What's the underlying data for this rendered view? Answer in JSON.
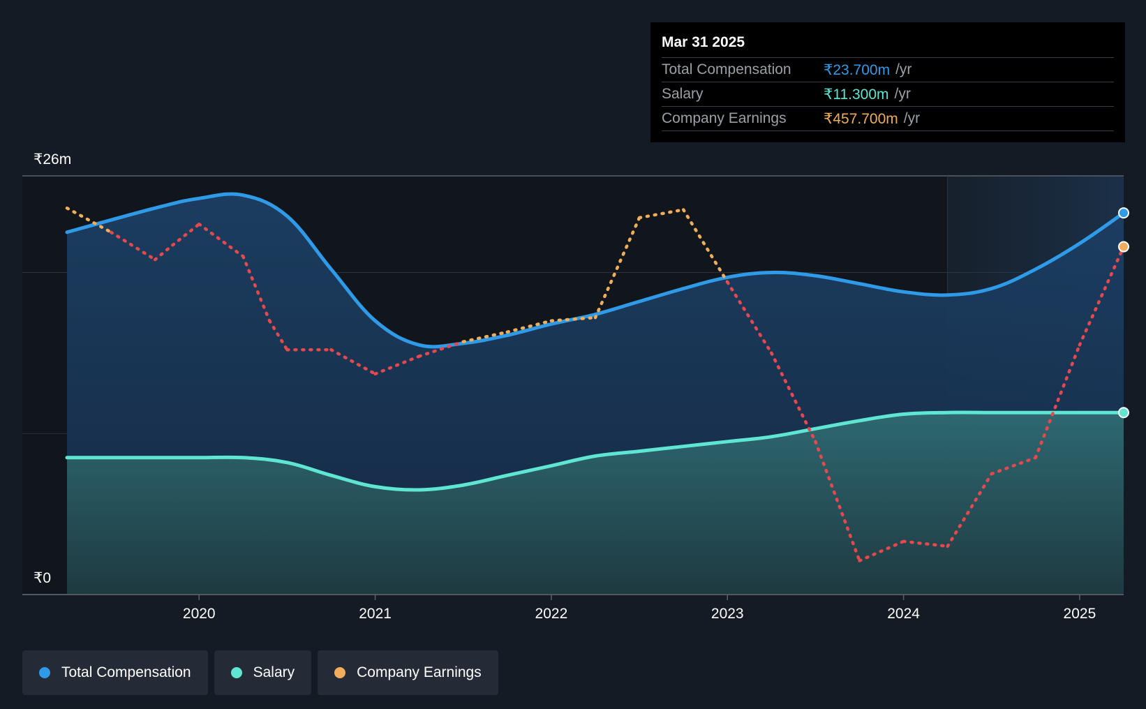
{
  "tooltip": {
    "date": "Mar 31 2025",
    "rows": [
      {
        "label": "Total Compensation",
        "value": "₹23.700m",
        "unit": "/yr",
        "color": "#2f9be8"
      },
      {
        "label": "Salary",
        "value": "₹11.300m",
        "unit": "/yr",
        "color": "#5fe6d2"
      },
      {
        "label": "Company Earnings",
        "value": "₹457.700m",
        "unit": "/yr",
        "color": "#f0ad5c"
      }
    ]
  },
  "legend": [
    {
      "label": "Total Compensation",
      "color": "#2f9be8"
    },
    {
      "label": "Salary",
      "color": "#5fe6d2"
    },
    {
      "label": "Company Earnings",
      "color": "#f0ad5c"
    }
  ],
  "chart_data": {
    "type": "area",
    "y_top_label": "₹26m",
    "y_bottom_label": "₹0",
    "ylim": [
      0,
      26
    ],
    "xlim": [
      2019.25,
      2025.25
    ],
    "x_ticks": [
      "2020",
      "2021",
      "2022",
      "2023",
      "2024",
      "2025"
    ],
    "x_tick_values": [
      2020,
      2021,
      2022,
      2023,
      2024,
      2025
    ],
    "gridlines_y": [
      0,
      10,
      20,
      26
    ],
    "forecast_start": 2024.25,
    "colors": {
      "total": "#2f9be8",
      "salary": "#5fe6d2",
      "earnings_positive": "#f0ad5c",
      "earnings_negative": "#e5484d"
    },
    "series": [
      {
        "name": "Total Compensation",
        "x": [
          2019.25,
          2019.75,
          2020.0,
          2020.25,
          2020.5,
          2020.75,
          2021.0,
          2021.25,
          2021.5,
          2021.75,
          2022.0,
          2022.25,
          2022.5,
          2022.75,
          2023.0,
          2023.25,
          2023.5,
          2023.75,
          2024.0,
          2024.25,
          2024.5,
          2024.75,
          2025.0,
          2025.25
        ],
        "values": [
          22.5,
          24.0,
          24.6,
          24.8,
          23.5,
          20.2,
          17.0,
          15.5,
          15.6,
          16.1,
          16.8,
          17.4,
          18.2,
          19.0,
          19.7,
          20.0,
          19.8,
          19.3,
          18.8,
          18.6,
          19.0,
          20.2,
          21.8,
          23.7
        ]
      },
      {
        "name": "Salary",
        "x": [
          2019.25,
          2019.75,
          2020.0,
          2020.25,
          2020.5,
          2020.75,
          2021.0,
          2021.25,
          2021.5,
          2021.75,
          2022.0,
          2022.25,
          2022.5,
          2022.75,
          2023.0,
          2023.25,
          2023.5,
          2023.75,
          2024.0,
          2024.25,
          2024.5,
          2024.75,
          2025.0,
          2025.25
        ],
        "values": [
          8.5,
          8.5,
          8.5,
          8.5,
          8.2,
          7.4,
          6.7,
          6.5,
          6.8,
          7.4,
          8.0,
          8.6,
          8.9,
          9.2,
          9.5,
          9.8,
          10.3,
          10.8,
          11.2,
          11.3,
          11.3,
          11.3,
          11.3,
          11.3
        ]
      },
      {
        "name": "Company Earnings",
        "x": [
          2019.25,
          2019.5,
          2019.75,
          2019.85,
          2020.0,
          2020.25,
          2020.4,
          2020.5,
          2020.75,
          2021.0,
          2021.25,
          2021.5,
          2021.75,
          2022.0,
          2022.25,
          2022.5,
          2022.75,
          2023.0,
          2023.25,
          2023.5,
          2023.75,
          2024.0,
          2024.25,
          2024.5,
          2024.75,
          2025.0,
          2025.25
        ],
        "values": [
          24.0,
          22.5,
          20.8,
          21.7,
          23.0,
          21.0,
          17.0,
          15.2,
          15.2,
          13.7,
          14.8,
          15.7,
          16.3,
          17.0,
          17.2,
          23.4,
          23.9,
          19.4,
          15.0,
          9.5,
          2.1,
          3.3,
          3.0,
          7.5,
          8.5,
          15.5,
          21.6
        ]
      }
    ]
  }
}
